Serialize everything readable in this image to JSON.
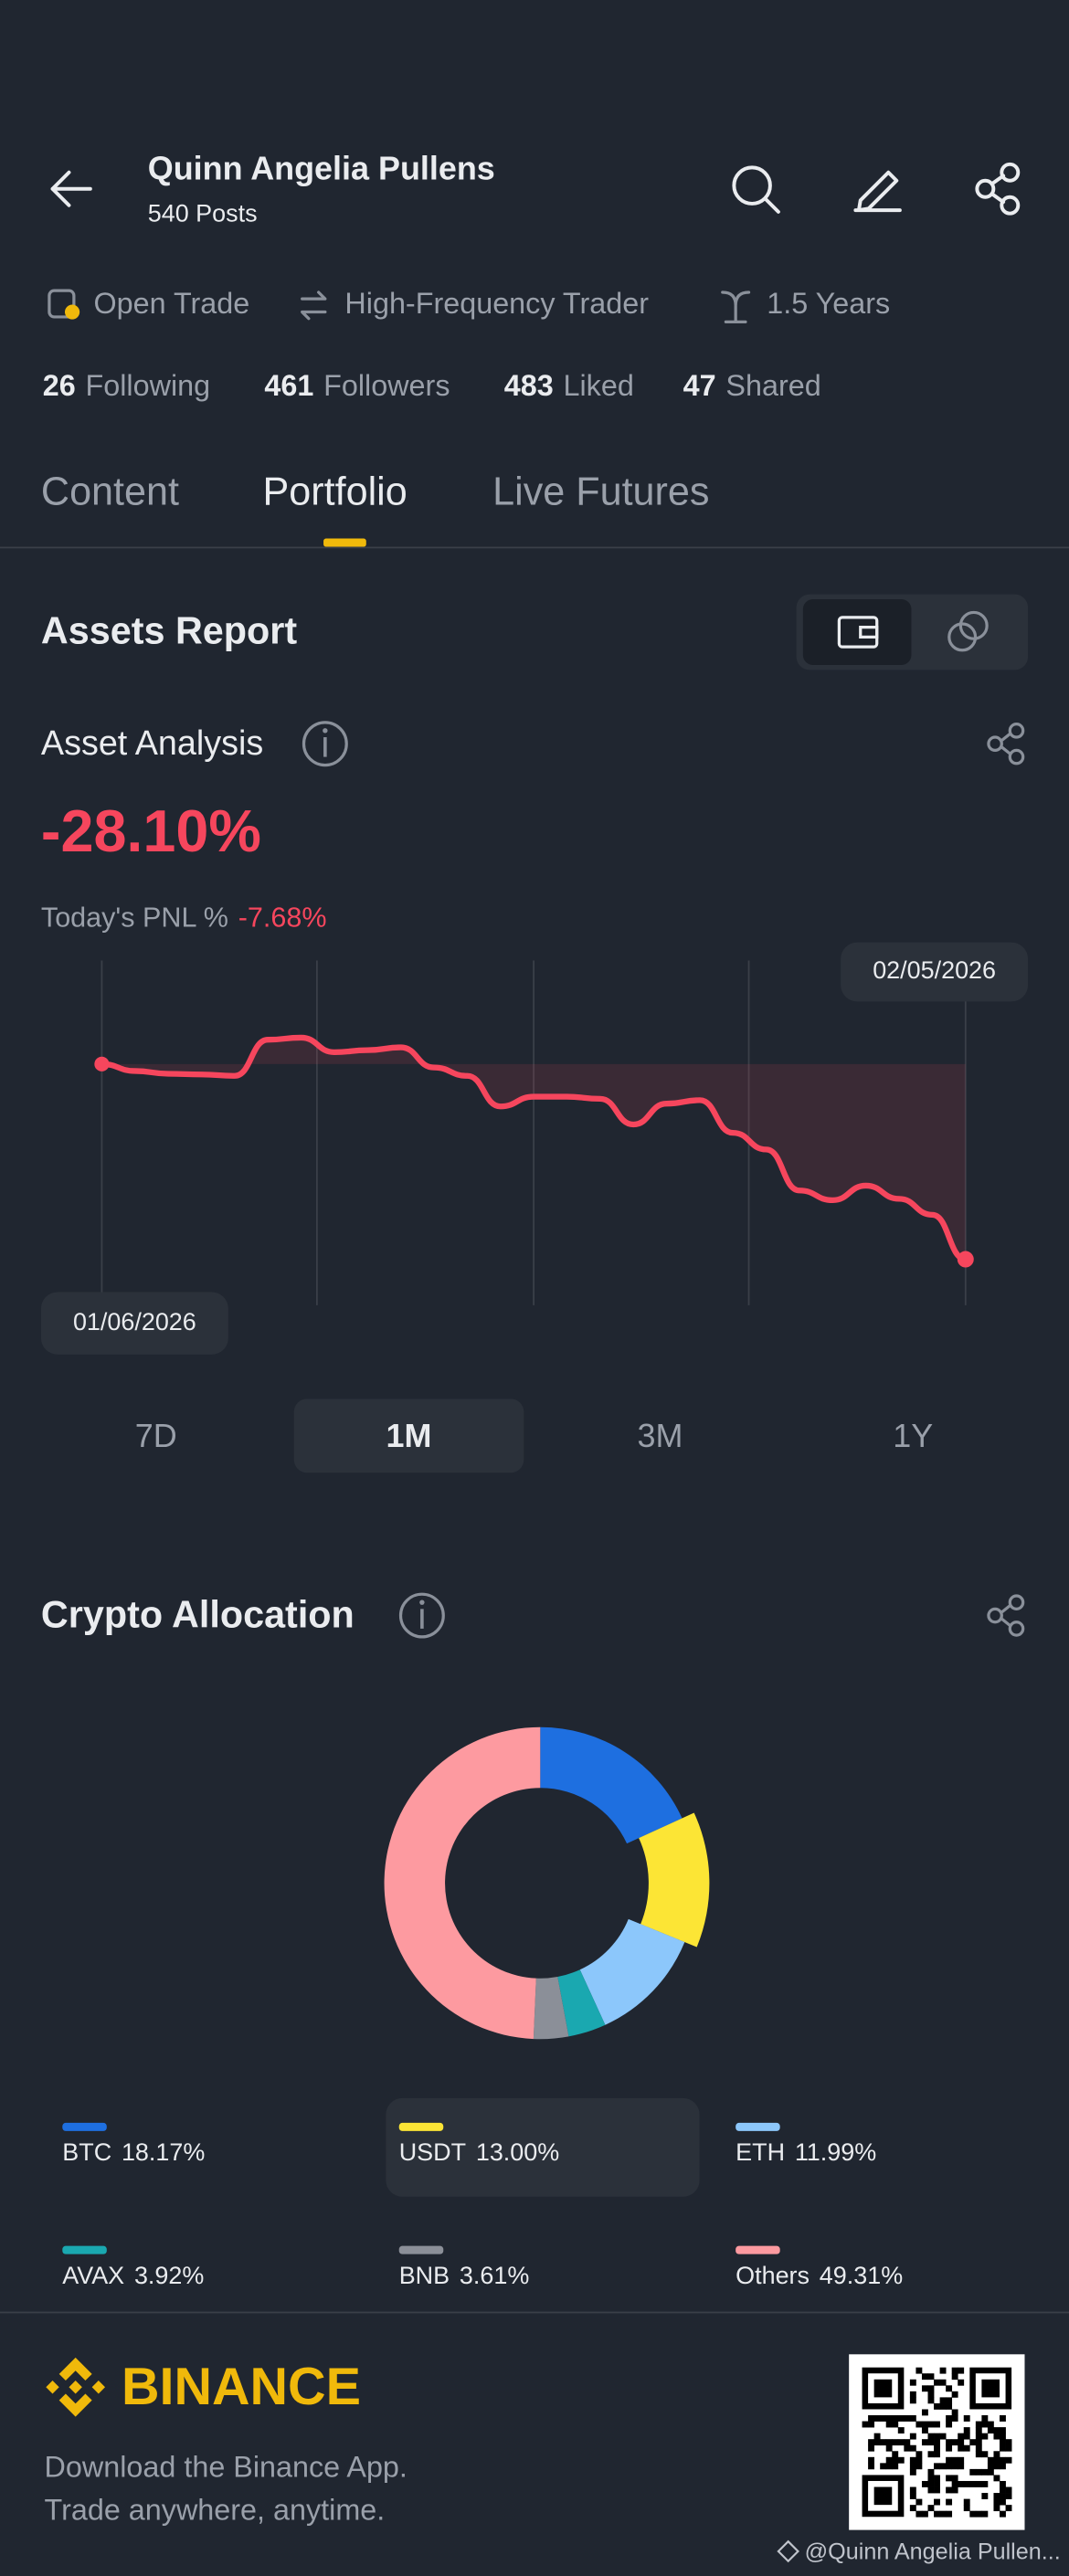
{
  "header": {
    "name": "Quinn Angelia Pullens",
    "posts": "540 Posts"
  },
  "badges": [
    "Open Trade",
    "High-Frequency Trader",
    "1.5 Years"
  ],
  "stats": [
    {
      "count": 26,
      "label": "Following"
    },
    {
      "count": 461,
      "label": "Followers"
    },
    {
      "count": 483,
      "label": "Liked"
    },
    {
      "count": 47,
      "label": "Shared"
    }
  ],
  "tabs": {
    "items": [
      "Content",
      "Portfolio",
      "Live Futures"
    ],
    "active_index": 1
  },
  "assets_report": {
    "title": "Assets Report"
  },
  "asset_analysis": {
    "title": "Asset Analysis",
    "pnl_total": "-28.10%",
    "today_label": "Today's PNL %",
    "today_value": "-7.68%",
    "chart": {
      "type": "line",
      "color": "#f6465d",
      "start_label": "01/06/2026",
      "end_label": "02/05/2026",
      "values": [
        0,
        -1.0,
        -1.4,
        -1.5,
        -1.7,
        3.5,
        3.8,
        1.7,
        2.0,
        2.4,
        -0.5,
        -1.7,
        -6.1,
        -4.7,
        -4.7,
        -5.0,
        -8.7,
        -5.7,
        -5.2,
        -9.9,
        -12.3,
        -18.2,
        -19.6,
        -17.5,
        -19.4,
        -21.7,
        -28.1
      ]
    }
  },
  "ranges": {
    "items": [
      "7D",
      "1M",
      "3M",
      "1Y"
    ],
    "selected_index": 1
  },
  "crypto_allocation": {
    "title": "Crypto Allocation",
    "chart": {
      "type": "pie",
      "categories": [
        "BTC",
        "USDT",
        "ETH",
        "AVAX",
        "BNB",
        "Others"
      ],
      "values": [
        18.17,
        13,
        11.99,
        3.92,
        3.61,
        49.31
      ],
      "value_labels": [
        "18.17%",
        "13.00%",
        "11.99%",
        "3.92%",
        "3.61%",
        "49.31%"
      ],
      "colors": [
        "#1e6fe0",
        "#fce535",
        "#8cc7fb",
        "#1aa8b0",
        "#8b8f98",
        "#fd9aa0"
      ],
      "selected_index": 1
    }
  },
  "footer": {
    "brand": "BINANCE",
    "tagline": [
      "Download the Binance App.",
      "Trade anywhere, anytime."
    ],
    "watermark": "@Quinn Angelia Pullen..."
  }
}
